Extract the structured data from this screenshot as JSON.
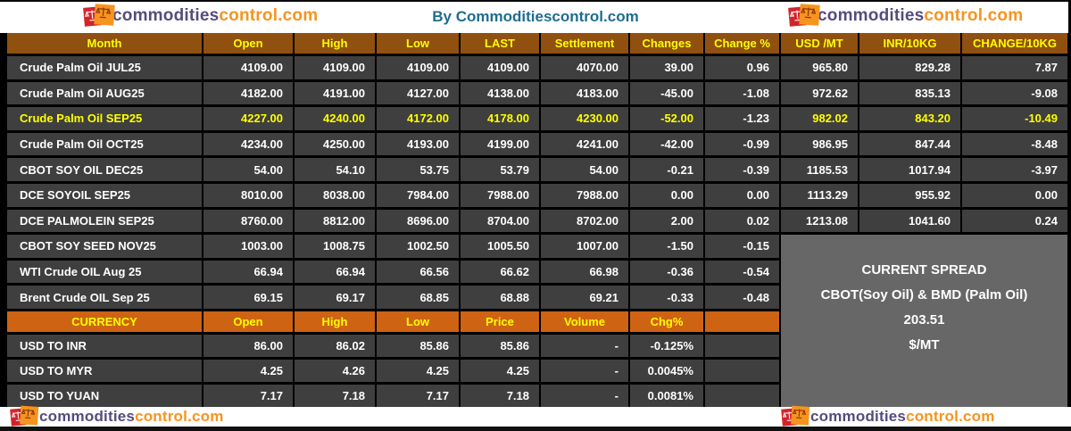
{
  "header": {
    "title": "By Commoditiescontrol.com"
  },
  "brand": {
    "name_part1": "commodities",
    "name_part2": "control.com"
  },
  "spread_box": {
    "lines": [
      "CURRENT SPREAD",
      "CBOT(Soy Oil) & BMD (Palm Oil)",
      "203.51",
      "$/MT"
    ]
  },
  "chart_data": [
    {
      "type": "table",
      "title": "Commodity futures prices",
      "columns": [
        "Month",
        "Open",
        "High",
        "Low",
        "LAST",
        "Settlement",
        "Changes",
        "Change %",
        "USD /MT",
        "INR/10KG",
        "CHANGE/10KG"
      ],
      "highlight_row": 2,
      "rows": [
        [
          "Crude Palm Oil JUL25",
          "4109.00",
          "4109.00",
          "4109.00",
          "4109.00",
          "4070.00",
          "39.00",
          "0.96",
          "965.80",
          "829.28",
          "7.87"
        ],
        [
          "Crude Palm Oil AUG25",
          "4182.00",
          "4191.00",
          "4127.00",
          "4138.00",
          "4183.00",
          "-45.00",
          "-1.08",
          "972.62",
          "835.13",
          "-9.08"
        ],
        [
          "Crude Palm Oil SEP25",
          "4227.00",
          "4240.00",
          "4172.00",
          "4178.00",
          "4230.00",
          "-52.00",
          "-1.23",
          "982.02",
          "843.20",
          "-10.49"
        ],
        [
          "Crude Palm Oil OCT25",
          "4234.00",
          "4250.00",
          "4193.00",
          "4199.00",
          "4241.00",
          "-42.00",
          "-0.99",
          "986.95",
          "847.44",
          "-8.48"
        ],
        [
          "CBOT SOY OIL DEC25",
          "54.00",
          "54.10",
          "53.75",
          "53.79",
          "54.00",
          "-0.21",
          "-0.39",
          "1185.53",
          "1017.94",
          "-3.97"
        ],
        [
          "DCE SOYOIL SEP25",
          "8010.00",
          "8038.00",
          "7984.00",
          "7988.00",
          "7988.00",
          "0.00",
          "0.00",
          "1113.29",
          "955.92",
          "0.00"
        ],
        [
          "DCE PALMOLEIN SEP25",
          "8760.00",
          "8812.00",
          "8696.00",
          "8704.00",
          "8702.00",
          "2.00",
          "0.02",
          "1213.08",
          "1041.60",
          "0.24"
        ],
        [
          "CBOT SOY SEED NOV25",
          "1003.00",
          "1008.75",
          "1002.50",
          "1005.50",
          "1007.00",
          "-1.50",
          "-0.15"
        ],
        [
          "WTI Crude OIL Aug 25",
          "66.94",
          "66.94",
          "66.56",
          "66.62",
          "66.98",
          "-0.36",
          "-0.54"
        ],
        [
          "Brent Crude OIL Sep 25",
          "69.15",
          "69.17",
          "68.85",
          "68.88",
          "69.21",
          "-0.33",
          "-0.48"
        ]
      ]
    },
    {
      "type": "table",
      "title": "Currency rates",
      "columns": [
        "CURRENCY",
        "Open",
        "High",
        "Low",
        "Price",
        "Volume",
        "Chg%"
      ],
      "rows": [
        [
          "USD TO INR",
          "86.00",
          "86.02",
          "85.86",
          "85.86",
          "-",
          "-0.125%"
        ],
        [
          "USD TO MYR",
          "4.25",
          "4.26",
          "4.25",
          "4.25",
          "-",
          "0.0045%"
        ],
        [
          "USD TO YUAN",
          "7.17",
          "7.18",
          "7.17",
          "7.18",
          "-",
          "0.0081%"
        ]
      ]
    }
  ],
  "colors": {
    "main_header_bg": "#90500F",
    "currency_header_bg": "#CE6314",
    "row_bg": "#3F3F3F",
    "highlight_text": "#FFFF00",
    "spread_box_bg": "#676767",
    "title_text": "#1F6C8E",
    "logo_purple": "#564B7D",
    "logo_orange": "#F7941E",
    "logo_red": "#D3232A"
  }
}
